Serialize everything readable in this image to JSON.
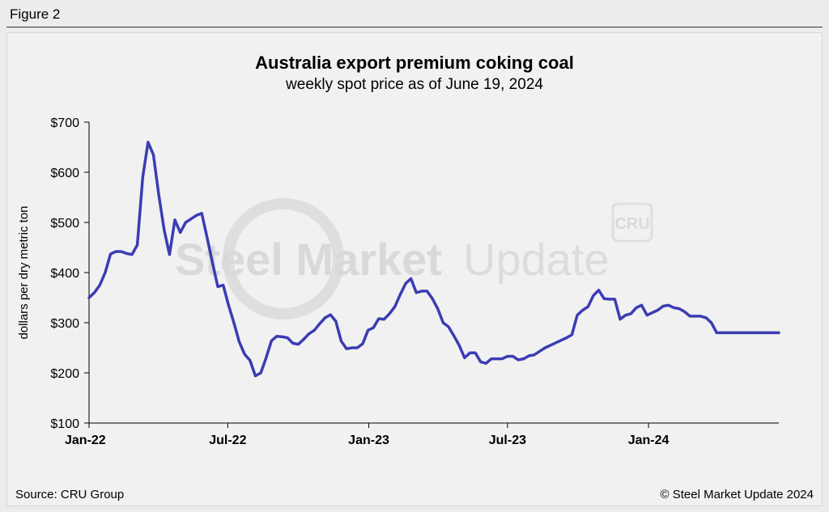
{
  "figure_label": "Figure 2",
  "source": "Source: CRU Group",
  "copyright": "© Steel Market Update 2024",
  "watermark": {
    "text_1": "Steel Market",
    "text_2": "Update",
    "logo": "CRU"
  },
  "colors": {
    "line": "#3c3cb4",
    "axis": "#000000",
    "background": "#f1f1f1",
    "watermark": "#d9d9d9"
  },
  "chart_data": {
    "type": "line",
    "title": "Australia export premium coking coal",
    "subtitle": "weekly spot price as of June 19, 2024",
    "ylabel": "dollars per dry metric ton",
    "xlabel": "",
    "ylim": [
      100,
      700
    ],
    "y_ticks": [
      "$100",
      "$200",
      "$300",
      "$400",
      "$500",
      "$600",
      "$700"
    ],
    "y_tick_values": [
      100,
      200,
      300,
      400,
      500,
      600,
      700
    ],
    "x_ticks": [
      "Jan-22",
      "Jul-22",
      "Jan-23",
      "Jul-23",
      "Jan-24"
    ],
    "x_tick_dates": [
      "2022-01-01",
      "2022-07-01",
      "2023-01-01",
      "2023-07-01",
      "2024-01-01"
    ],
    "xlim": [
      "2022-01-01",
      "2024-06-19"
    ],
    "grid": false,
    "legend": "none",
    "series": [
      {
        "x": [
          "2022-01-01",
          "2022-01-08",
          "2022-01-15",
          "2022-01-22",
          "2022-01-29",
          "2022-02-05",
          "2022-02-12",
          "2022-02-19",
          "2022-02-26",
          "2022-03-05",
          "2022-03-12",
          "2022-03-19",
          "2022-03-26",
          "2022-04-02",
          "2022-04-09",
          "2022-04-16",
          "2022-04-23",
          "2022-04-30",
          "2022-05-07",
          "2022-05-14",
          "2022-05-21",
          "2022-05-28",
          "2022-06-04",
          "2022-06-11",
          "2022-06-18",
          "2022-06-25",
          "2022-07-02",
          "2022-07-09",
          "2022-07-16",
          "2022-07-23",
          "2022-07-30",
          "2022-08-06",
          "2022-08-13",
          "2022-08-20",
          "2022-08-27",
          "2022-09-03",
          "2022-09-10",
          "2022-09-17",
          "2022-09-24",
          "2022-10-01",
          "2022-10-08",
          "2022-10-15",
          "2022-10-22",
          "2022-10-29",
          "2022-11-05",
          "2022-11-12",
          "2022-11-19",
          "2022-11-26",
          "2022-12-03",
          "2022-12-10",
          "2022-12-17",
          "2022-12-24",
          "2022-12-31",
          "2023-01-07",
          "2023-01-14",
          "2023-01-21",
          "2023-01-28",
          "2023-02-04",
          "2023-02-11",
          "2023-02-18",
          "2023-02-25",
          "2023-03-04",
          "2023-03-11",
          "2023-03-18",
          "2023-03-25",
          "2023-04-01",
          "2023-04-08",
          "2023-04-15",
          "2023-04-22",
          "2023-04-29",
          "2023-05-06",
          "2023-05-13",
          "2023-05-20",
          "2023-05-27",
          "2023-06-03",
          "2023-06-10",
          "2023-06-17",
          "2023-06-24",
          "2023-07-01",
          "2023-07-08",
          "2023-07-15",
          "2023-07-22",
          "2023-07-29",
          "2023-08-05",
          "2023-08-12",
          "2023-08-19",
          "2023-08-26",
          "2023-09-02",
          "2023-09-09",
          "2023-09-16",
          "2023-09-23",
          "2023-09-30",
          "2023-10-07",
          "2023-10-14",
          "2023-10-21",
          "2023-10-28",
          "2023-11-04",
          "2023-11-11",
          "2023-11-18",
          "2023-11-25",
          "2023-12-02",
          "2023-12-09",
          "2023-12-16",
          "2023-12-23",
          "2023-12-30",
          "2024-01-06",
          "2024-01-13",
          "2024-01-20",
          "2024-01-27",
          "2024-02-03",
          "2024-02-10",
          "2024-02-17",
          "2024-02-24",
          "2024-03-02",
          "2024-03-09",
          "2024-03-16",
          "2024-03-23",
          "2024-03-30",
          "2024-04-06",
          "2024-04-13",
          "2024-04-20",
          "2024-04-27",
          "2024-05-04",
          "2024-05-11",
          "2024-05-18",
          "2024-05-25",
          "2024-06-01",
          "2024-06-08",
          "2024-06-15",
          "2024-06-19"
        ],
        "values": [
          350,
          360,
          375,
          400,
          437,
          442,
          442,
          438,
          436,
          455,
          590,
          660,
          635,
          555,
          485,
          436,
          505,
          480,
          500,
          507,
          514,
          518,
          470,
          420,
          372,
          375,
          335,
          300,
          262,
          237,
          225,
          194,
          200,
          230,
          264,
          273,
          272,
          270,
          259,
          257,
          267,
          278,
          285,
          298,
          310,
          316,
          303,
          263,
          248,
          250,
          250,
          258,
          285,
          290,
          308,
          307,
          318,
          332,
          356,
          378,
          388,
          360,
          363,
          363,
          348,
          328,
          300,
          292,
          274,
          255,
          230,
          240,
          240,
          222,
          219,
          228,
          228,
          228,
          233,
          233,
          226,
          228,
          234,
          236,
          243,
          250,
          255,
          260,
          265,
          270,
          276,
          315,
          325,
          332,
          354,
          365,
          348,
          347,
          347,
          307,
          315,
          318,
          330,
          335,
          315,
          320,
          325,
          333,
          335,
          330,
          328,
          322,
          313,
          313,
          313,
          310,
          300,
          280,
          280,
          280,
          280,
          280,
          280,
          280,
          280,
          280,
          280,
          280,
          280,
          280
        ]
      }
    ]
  }
}
